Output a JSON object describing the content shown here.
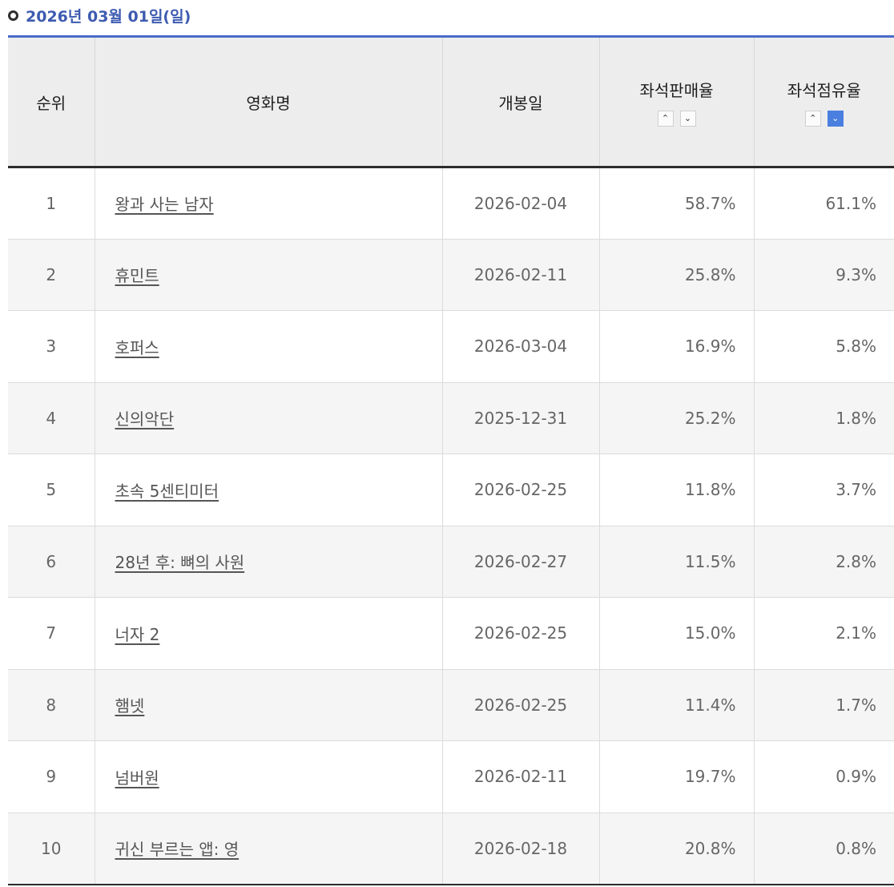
{
  "date_header": "2026년 03월 01일(일)",
  "columns": {
    "rank": "순위",
    "title": "영화명",
    "release_date": "개봉일",
    "sales_rate": "좌석판매율",
    "occupancy_rate": "좌석점유율"
  },
  "sort_controls": {
    "up_glyph": "⌃",
    "down_glyph": "⌄",
    "active": "occupancy_rate-desc",
    "accent": "#4a7fe0"
  },
  "rows": [
    {
      "rank": "1",
      "title": "왕과 사는 남자",
      "release_date": "2026-02-04",
      "sales_rate": "58.7%",
      "occupancy_rate": "61.1%"
    },
    {
      "rank": "2",
      "title": "휴민트",
      "release_date": "2026-02-11",
      "sales_rate": "25.8%",
      "occupancy_rate": "9.3%"
    },
    {
      "rank": "3",
      "title": "호퍼스",
      "release_date": "2026-03-04",
      "sales_rate": "16.9%",
      "occupancy_rate": "5.8%"
    },
    {
      "rank": "4",
      "title": "신의악단",
      "release_date": "2025-12-31",
      "sales_rate": "25.2%",
      "occupancy_rate": "1.8%"
    },
    {
      "rank": "5",
      "title": "초속 5센티미터",
      "release_date": "2026-02-25",
      "sales_rate": "11.8%",
      "occupancy_rate": "3.7%"
    },
    {
      "rank": "6",
      "title": "28년 후: 뼈의 사원",
      "release_date": "2026-02-27",
      "sales_rate": "11.5%",
      "occupancy_rate": "2.8%"
    },
    {
      "rank": "7",
      "title": "너자 2",
      "release_date": "2026-02-25",
      "sales_rate": "15.0%",
      "occupancy_rate": "2.1%"
    },
    {
      "rank": "8",
      "title": "햄넷",
      "release_date": "2026-02-25",
      "sales_rate": "11.4%",
      "occupancy_rate": "1.7%"
    },
    {
      "rank": "9",
      "title": "넘버원",
      "release_date": "2026-02-11",
      "sales_rate": "19.7%",
      "occupancy_rate": "0.9%"
    },
    {
      "rank": "10",
      "title": "귀신 부르는 앱: 영",
      "release_date": "2026-02-18",
      "sales_rate": "20.8%",
      "occupancy_rate": "0.8%"
    }
  ]
}
